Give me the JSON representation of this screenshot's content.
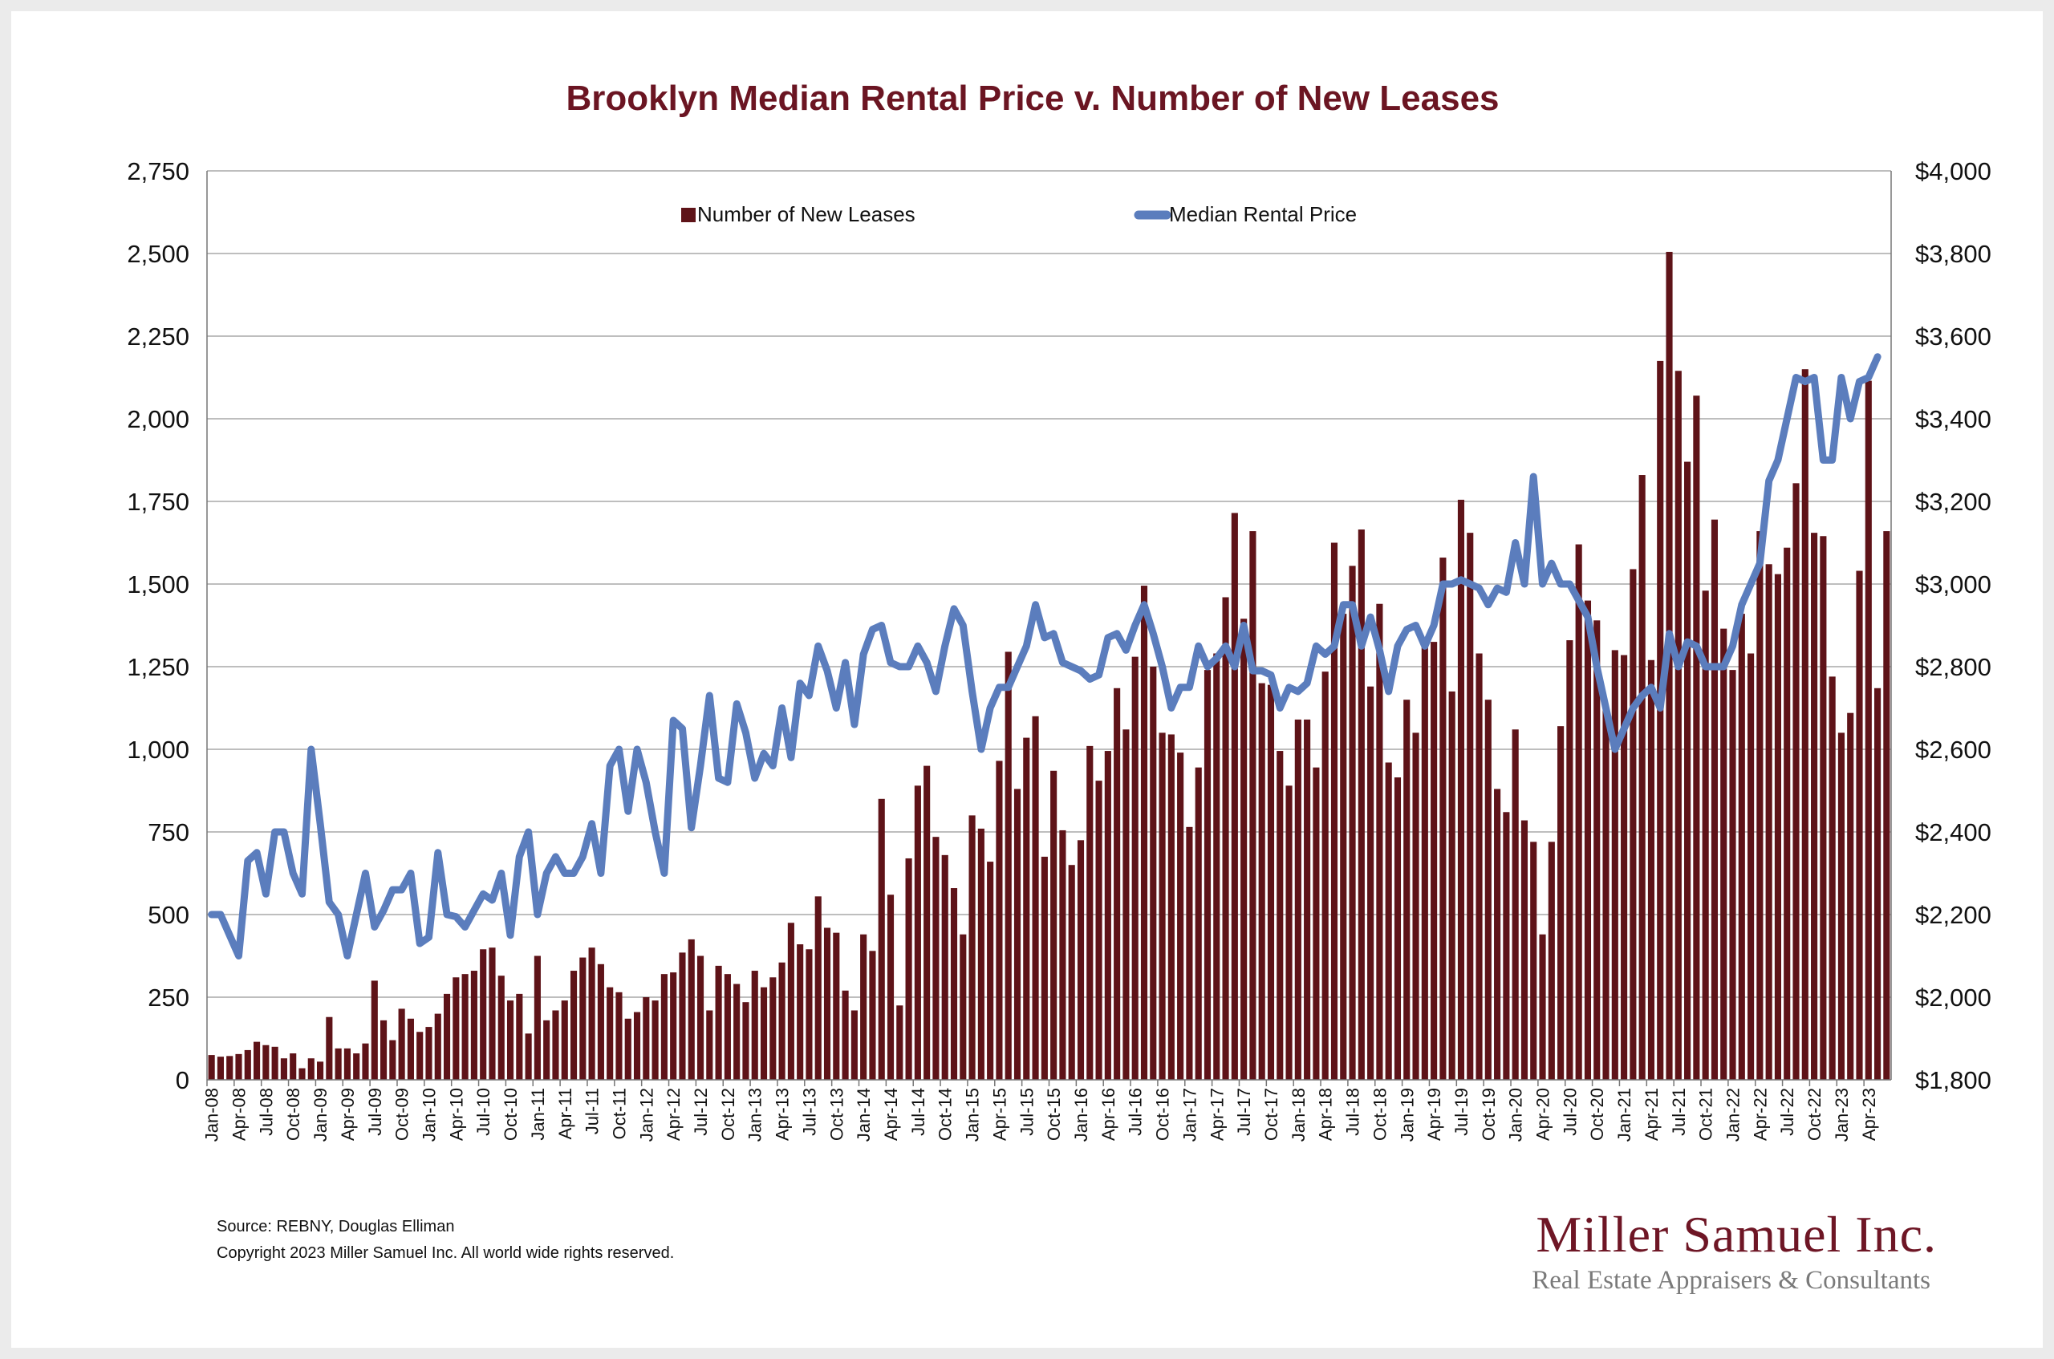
{
  "colors": {
    "bar": "#5e1318",
    "line": "#5b7dbd",
    "title": "#6b1522",
    "grid": "#a8a8a8"
  },
  "chart_data": {
    "type": "bar",
    "title": "Brooklyn Median Rental Price v. Number of New Leases",
    "xlabel": "",
    "ylabel": "",
    "y_left_range": [
      0,
      2750
    ],
    "y_right_range": [
      1800,
      4000
    ],
    "y_left_ticks": [
      "0",
      "250",
      "500",
      "750",
      "1,000",
      "1,250",
      "1,500",
      "1,750",
      "2,000",
      "2,250",
      "2,500",
      "2,750"
    ],
    "y_right_ticks": [
      "$1,800",
      "$2,000",
      "$2,200",
      "$2,400",
      "$2,600",
      "$2,800",
      "$3,000",
      "$3,200",
      "$3,400",
      "$3,600",
      "$3,800",
      "$4,000"
    ],
    "x_tick_labels": [
      "Jan-08",
      "Apr-08",
      "Jul-08",
      "Oct-08",
      "Jan-09",
      "Apr-09",
      "Jul-09",
      "Oct-09",
      "Jan-10",
      "Apr-10",
      "Jul-10",
      "Oct-10",
      "Jan-11",
      "Apr-11",
      "Jul-11",
      "Oct-11",
      "Jan-12",
      "Apr-12",
      "Jul-12",
      "Oct-12",
      "Jan-13",
      "Apr-13",
      "Jul-13",
      "Oct-13",
      "Jan-14",
      "Apr-14",
      "Jul-14",
      "Oct-14",
      "Jan-15",
      "Apr-15",
      "Jul-15",
      "Oct-15",
      "Jan-16",
      "Apr-16",
      "Jul-16",
      "Oct-16",
      "Jan-17",
      "Apr-17",
      "Jul-17",
      "Oct-17",
      "Jan-18",
      "Apr-18",
      "Jul-18",
      "Oct-18",
      "Jan-19",
      "Apr-19",
      "Jul-19",
      "Oct-19",
      "Jan-20",
      "Apr-20",
      "Jul-20",
      "Oct-20",
      "Jan-21",
      "Apr-21",
      "Jul-21",
      "Oct-21",
      "Jan-22",
      "Apr-22",
      "Jul-22",
      "Oct-22",
      "Jan-23",
      "Apr-23"
    ],
    "legend": [
      "Number of New Leases",
      "Median Rental Price"
    ],
    "legend_position": "top-center",
    "grid": true,
    "series": [
      {
        "name": "Number of New Leases",
        "type": "bar",
        "axis": "left",
        "values": [
          75,
          70,
          72,
          78,
          90,
          115,
          105,
          100,
          65,
          80,
          35,
          65,
          55,
          190,
          95,
          95,
          80,
          110,
          300,
          180,
          120,
          215,
          185,
          145,
          160,
          200,
          260,
          310,
          320,
          330,
          395,
          400,
          315,
          240,
          260,
          140,
          375,
          180,
          210,
          240,
          330,
          370,
          400,
          350,
          280,
          265,
          185,
          205,
          250,
          240,
          320,
          325,
          385,
          425,
          375,
          210,
          345,
          320,
          290,
          235,
          330,
          280,
          310,
          355,
          475,
          410,
          395,
          555,
          460,
          445,
          270,
          210,
          440,
          390,
          850,
          560,
          225,
          670,
          890,
          950,
          735,
          680,
          580,
          440,
          800,
          760,
          660,
          965,
          1295,
          880,
          1035,
          1100,
          675,
          935,
          755,
          650,
          725,
          1010,
          905,
          995,
          1185,
          1060,
          1280,
          1495,
          1250,
          1050,
          1045,
          990,
          765,
          945,
          1240,
          1290,
          1460,
          1715,
          1395,
          1660,
          1200,
          1195,
          995,
          890,
          1090,
          1090,
          945,
          1235,
          1625,
          1410,
          1555,
          1665,
          1190,
          1440,
          960,
          915,
          1150,
          1050,
          1320,
          1325,
          1580,
          1175,
          1755,
          1655,
          1290,
          1150,
          880,
          810,
          1060,
          785,
          720,
          440,
          720,
          1070,
          1330,
          1620,
          1450,
          1390,
          1120,
          1300,
          1285,
          1545,
          1830,
          1270,
          2175,
          2505,
          2145,
          1870,
          2070,
          1480,
          1695,
          1365,
          1240,
          1410,
          1290,
          1660,
          1560,
          1530,
          1610,
          1805,
          2150,
          1655,
          1645,
          1220,
          1050,
          1110,
          1540,
          2115,
          1185,
          1660
        ]
      },
      {
        "name": "Median Rental Price",
        "type": "line",
        "axis": "right",
        "values": [
          2200,
          2200,
          2150,
          2100,
          2330,
          2350,
          2250,
          2400,
          2400,
          2300,
          2250,
          2600,
          2420,
          2230,
          2200,
          2100,
          2200,
          2300,
          2170,
          2210,
          2260,
          2260,
          2300,
          2130,
          2145,
          2350,
          2200,
          2195,
          2170,
          2210,
          2250,
          2235,
          2300,
          2150,
          2340,
          2400,
          2200,
          2300,
          2340,
          2300,
          2300,
          2340,
          2420,
          2300,
          2560,
          2600,
          2450,
          2600,
          2520,
          2400,
          2300,
          2670,
          2650,
          2410,
          2560,
          2730,
          2530,
          2520,
          2710,
          2640,
          2530,
          2590,
          2560,
          2700,
          2580,
          2760,
          2730,
          2850,
          2790,
          2700,
          2810,
          2660,
          2830,
          2890,
          2900,
          2810,
          2800,
          2800,
          2850,
          2810,
          2740,
          2850,
          2940,
          2900,
          2740,
          2600,
          2700,
          2750,
          2750,
          2800,
          2850,
          2950,
          2870,
          2880,
          2810,
          2800,
          2790,
          2770,
          2780,
          2870,
          2880,
          2840,
          2900,
          2950,
          2880,
          2800,
          2700,
          2750,
          2750,
          2850,
          2800,
          2820,
          2850,
          2800,
          2900,
          2790,
          2790,
          2780,
          2700,
          2750,
          2740,
          2760,
          2850,
          2830,
          2850,
          2950,
          2950,
          2850,
          2920,
          2840,
          2740,
          2850,
          2890,
          2900,
          2850,
          2900,
          3000,
          3000,
          3010,
          3000,
          2990,
          2950,
          2990,
          2980,
          3100,
          3000,
          3260,
          3000,
          3050,
          3000,
          3000,
          2960,
          2920,
          2800,
          2700,
          2600,
          2650,
          2700,
          2730,
          2750,
          2700,
          2880,
          2800,
          2860,
          2850,
          2800,
          2800,
          2800,
          2850,
          2950,
          3000,
          3050,
          3250,
          3300,
          3400,
          3500,
          3490,
          3500,
          3300,
          3300,
          3500,
          3400,
          3490,
          3500,
          3550
        ]
      }
    ]
  },
  "footer": {
    "source": "Source: REBNY, Douglas Elliman",
    "copyright": "Copyright 2023 Miller Samuel Inc.  All world wide rights reserved."
  },
  "logo": {
    "name": "Miller Samuel Inc.",
    "tagline": "Real Estate Appraisers & Consultants"
  }
}
